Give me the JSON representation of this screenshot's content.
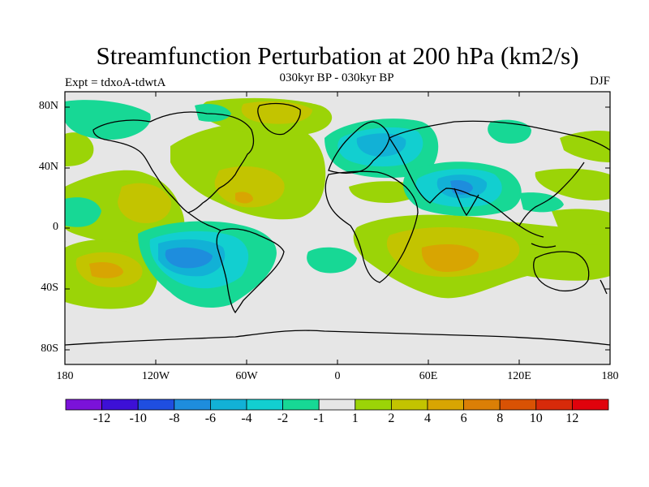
{
  "title": "Streamfunction Perturbation at 200 hPa (km2/s)",
  "subtitle": "030kyr BP - 030kyr BP",
  "left_label": "Expt = tdxoA-tdwtA",
  "right_label": "DJF",
  "lat_ticks": [
    "80N",
    "40N",
    "0",
    "40S",
    "80S"
  ],
  "lon_ticks": [
    "180",
    "120W",
    "60W",
    "0",
    "60E",
    "120E",
    "180"
  ],
  "colorbar": {
    "colors": [
      "#7b12d9",
      "#3d10d6",
      "#1f4ee0",
      "#1e8ddd",
      "#12b1d6",
      "#12cfd0",
      "#17d895",
      "#e6e6e6",
      "#9bd407",
      "#c3c400",
      "#d8a502",
      "#db7f06",
      "#d95204",
      "#d72a0a",
      "#e0020c"
    ],
    "labels": [
      "-12",
      "-10",
      "-8",
      "-6",
      "-4",
      "-2",
      "-1",
      "1",
      "2",
      "4",
      "6",
      "8",
      "10",
      "12"
    ]
  }
}
